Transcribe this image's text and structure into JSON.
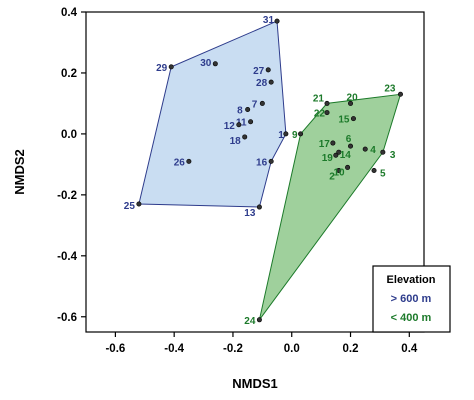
{
  "chart_data": {
    "type": "scatter",
    "xlabel": "NMDS1",
    "ylabel": "NMDS2",
    "xlim": [
      -0.7,
      0.45
    ],
    "ylim": [
      -0.65,
      0.4
    ],
    "xticks": [
      -0.6,
      -0.4,
      -0.2,
      0.0,
      0.2,
      0.4
    ],
    "yticks": [
      -0.6,
      -0.4,
      -0.2,
      0.0,
      0.2,
      0.4
    ],
    "xtick_labels": [
      "-0.6",
      "-0.4",
      "-0.2",
      "0.0",
      "0.2",
      "0.4"
    ],
    "ytick_labels": [
      "-0.6",
      "-0.4",
      "-0.2",
      "0.0",
      "0.2",
      "0.4"
    ],
    "grid": false,
    "legend": {
      "title": "Elevation",
      "placement": "bottom-right",
      "entries": [
        "> 600 m",
        "< 400 m"
      ]
    },
    "series": [
      {
        "name": "> 600 m",
        "color": "#2e3c8c",
        "fill": "#c9ddf2",
        "hull": [
          "31",
          "1",
          "16",
          "13",
          "25",
          "29"
        ],
        "points": [
          {
            "label": "1",
            "x": -0.02,
            "y": 0.0
          },
          {
            "label": "7",
            "x": -0.1,
            "y": 0.1
          },
          {
            "label": "8",
            "x": -0.15,
            "y": 0.08
          },
          {
            "label": "11",
            "x": -0.14,
            "y": 0.04
          },
          {
            "label": "12",
            "x": -0.18,
            "y": 0.03
          },
          {
            "label": "13",
            "x": -0.11,
            "y": -0.24
          },
          {
            "label": "16",
            "x": -0.07,
            "y": -0.09
          },
          {
            "label": "18",
            "x": -0.16,
            "y": -0.01
          },
          {
            "label": "25",
            "x": -0.52,
            "y": -0.23
          },
          {
            "label": "26",
            "x": -0.35,
            "y": -0.09
          },
          {
            "label": "27",
            "x": -0.08,
            "y": 0.21
          },
          {
            "label": "28",
            "x": -0.07,
            "y": 0.17
          },
          {
            "label": "29",
            "x": -0.41,
            "y": 0.22
          },
          {
            "label": "30",
            "x": -0.26,
            "y": 0.23
          },
          {
            "label": "31",
            "x": -0.05,
            "y": 0.37
          }
        ]
      },
      {
        "name": "< 400 m",
        "color": "#1c7a2a",
        "fill": "#9fd09c",
        "hull": [
          "9",
          "21",
          "23",
          "3",
          "24"
        ],
        "points": [
          {
            "label": "2",
            "x": 0.16,
            "y": -0.12
          },
          {
            "label": "3",
            "x": 0.31,
            "y": -0.06
          },
          {
            "label": "4",
            "x": 0.25,
            "y": -0.05
          },
          {
            "label": "5",
            "x": 0.28,
            "y": -0.12
          },
          {
            "label": "6",
            "x": 0.2,
            "y": -0.04
          },
          {
            "label": "9",
            "x": 0.03,
            "y": 0.0
          },
          {
            "label": "10",
            "x": 0.19,
            "y": -0.11
          },
          {
            "label": "14",
            "x": 0.16,
            "y": -0.06
          },
          {
            "label": "15",
            "x": 0.21,
            "y": 0.05
          },
          {
            "label": "17",
            "x": 0.14,
            "y": -0.03
          },
          {
            "label": "19",
            "x": 0.15,
            "y": -0.07
          },
          {
            "label": "20",
            "x": 0.2,
            "y": 0.1
          },
          {
            "label": "21",
            "x": 0.12,
            "y": 0.1
          },
          {
            "label": "22",
            "x": 0.12,
            "y": 0.07
          },
          {
            "label": "23",
            "x": 0.37,
            "y": 0.13
          },
          {
            "label": "24",
            "x": -0.11,
            "y": -0.61
          }
        ]
      }
    ]
  }
}
